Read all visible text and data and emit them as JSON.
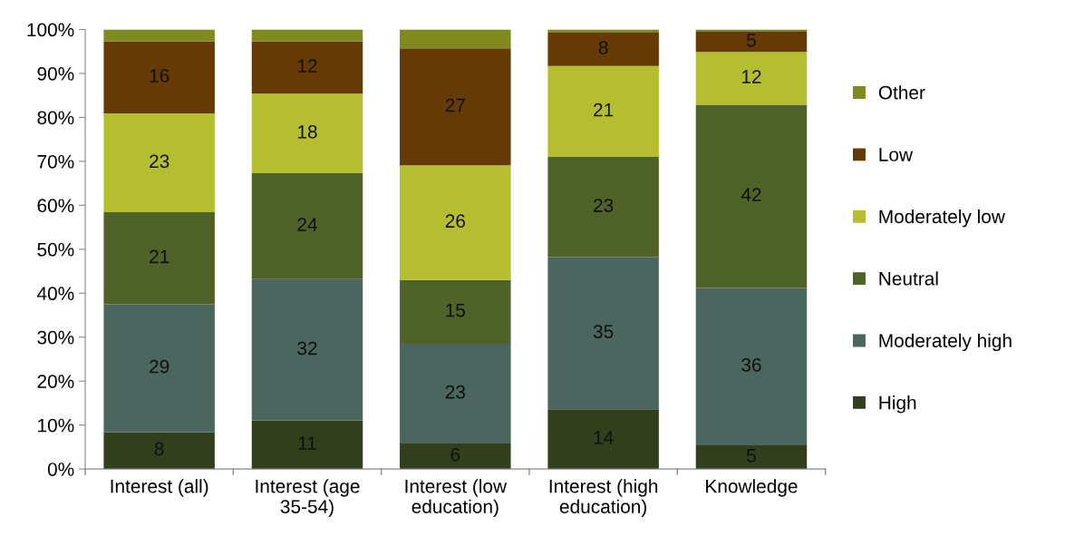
{
  "chart_data": {
    "type": "bar",
    "stacked": true,
    "categories": [
      "Interest (all)",
      "Interest (age\n35-54)",
      "Interest (low\neducation)",
      "Interest (high\neducation)",
      "Knowledge"
    ],
    "series": [
      {
        "name": "High",
        "color": "#313f1c",
        "values": [
          8.4,
          11.0,
          5.8,
          13.6,
          5.4
        ],
        "value_labels": [
          "8",
          "11",
          "6",
          "14",
          "5"
        ]
      },
      {
        "name": "Moderately high",
        "color": "#4a665e",
        "values": [
          29.1,
          32.2,
          22.7,
          34.6,
          35.8
        ],
        "value_labels": [
          "29",
          "32",
          "23",
          "35",
          "36"
        ]
      },
      {
        "name": "Neutral",
        "color": "#4f6228",
        "values": [
          20.9,
          24.1,
          14.5,
          22.8,
          41.7
        ],
        "value_labels": [
          "21",
          "24",
          "15",
          "23",
          "42"
        ]
      },
      {
        "name": "Moderately low",
        "color": "#b5be2e",
        "values": [
          22.5,
          18.1,
          26.1,
          20.7,
          12.0
        ],
        "value_labels": [
          "23",
          "18",
          "26",
          "21",
          "12"
        ]
      },
      {
        "name": "Low",
        "color": "#663a05",
        "values": [
          16.4,
          11.9,
          26.6,
          7.6,
          4.6
        ],
        "value_labels": [
          "16",
          "12",
          "27",
          "8",
          "5"
        ]
      },
      {
        "name": "Other",
        "color": "#7f8a1f",
        "values": [
          2.7,
          2.7,
          4.3,
          0.7,
          0.5
        ],
        "value_labels": [
          null,
          null,
          null,
          null,
          null
        ]
      }
    ],
    "ylim": [
      0,
      100
    ],
    "yticks": [
      {
        "value": 0,
        "label": "0%"
      },
      {
        "value": 10,
        "label": "10%"
      },
      {
        "value": 20,
        "label": "20%"
      },
      {
        "value": 30,
        "label": "30%"
      },
      {
        "value": 40,
        "label": "40%"
      },
      {
        "value": 50,
        "label": "50%"
      },
      {
        "value": 60,
        "label": "60%"
      },
      {
        "value": 70,
        "label": "70%"
      },
      {
        "value": 80,
        "label": "80%"
      },
      {
        "value": 90,
        "label": "90%"
      },
      {
        "value": 100,
        "label": "100%"
      }
    ],
    "grid": false,
    "legend": "right"
  }
}
